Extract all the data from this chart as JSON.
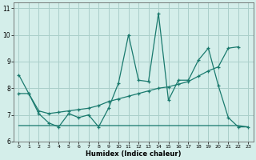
{
  "xlabel": "Humidex (Indice chaleur)",
  "xlim": [
    -0.5,
    23.5
  ],
  "ylim": [
    6.0,
    11.2
  ],
  "yticks": [
    6,
    7,
    8,
    9,
    10,
    11
  ],
  "xticks": [
    0,
    1,
    2,
    3,
    4,
    5,
    6,
    7,
    8,
    9,
    10,
    11,
    12,
    13,
    14,
    15,
    16,
    17,
    18,
    19,
    20,
    21,
    22,
    23
  ],
  "bg_color": "#d4eeea",
  "grid_color": "#aacfc9",
  "line_color": "#1a7a6e",
  "series1_x": [
    0,
    1,
    2,
    3,
    4,
    5,
    6,
    7,
    8,
    9,
    10,
    11,
    12,
    13,
    14,
    15,
    16,
    17,
    18,
    19,
    20,
    21,
    22,
    23
  ],
  "series1_y": [
    8.5,
    7.8,
    7.05,
    6.7,
    6.55,
    7.05,
    6.9,
    7.0,
    6.55,
    7.25,
    8.2,
    10.0,
    8.3,
    8.25,
    10.8,
    7.55,
    8.3,
    8.3,
    9.05,
    9.5,
    8.1,
    6.9,
    6.55,
    6.55
  ],
  "series2_x": [
    0,
    1,
    2,
    3,
    4,
    5,
    6,
    7,
    8,
    9,
    10,
    11,
    12,
    13,
    14,
    15,
    16,
    17,
    18,
    19,
    20,
    21,
    22
  ],
  "series2_y": [
    7.8,
    7.8,
    7.15,
    7.05,
    7.1,
    7.15,
    7.2,
    7.25,
    7.35,
    7.5,
    7.6,
    7.7,
    7.8,
    7.9,
    8.0,
    8.05,
    8.15,
    8.25,
    8.45,
    8.65,
    8.8,
    9.5,
    9.55
  ],
  "series3_x": [
    0,
    20,
    20,
    22,
    23
  ],
  "series3_y": [
    6.6,
    6.6,
    6.6,
    6.6,
    6.55
  ]
}
